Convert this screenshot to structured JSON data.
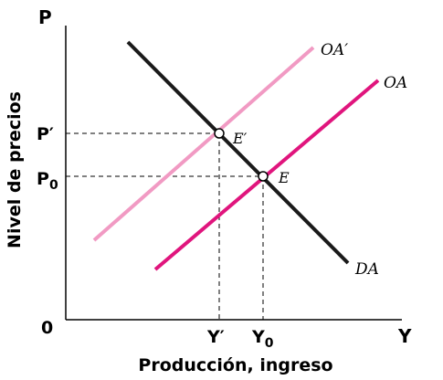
{
  "axes": {
    "y_letter": "P",
    "x_letter": "Y",
    "origin": "0",
    "y_title": "Nivel de precios",
    "x_title": "Producción, ingreso"
  },
  "ticks": {
    "p_prime": "P′",
    "p0_base": "P",
    "p0_sub": "0",
    "y_prime": "Y′",
    "y0_base": "Y",
    "y0_sub": "0"
  },
  "curves": {
    "da": "DA",
    "oa": "OA",
    "oa_prime": "OA′"
  },
  "points": {
    "e": "E",
    "e_prime": "E′"
  },
  "colors": {
    "da": "#1a1a1a",
    "oa": "#e0157d",
    "oa_prime": "#f19ac3"
  }
}
